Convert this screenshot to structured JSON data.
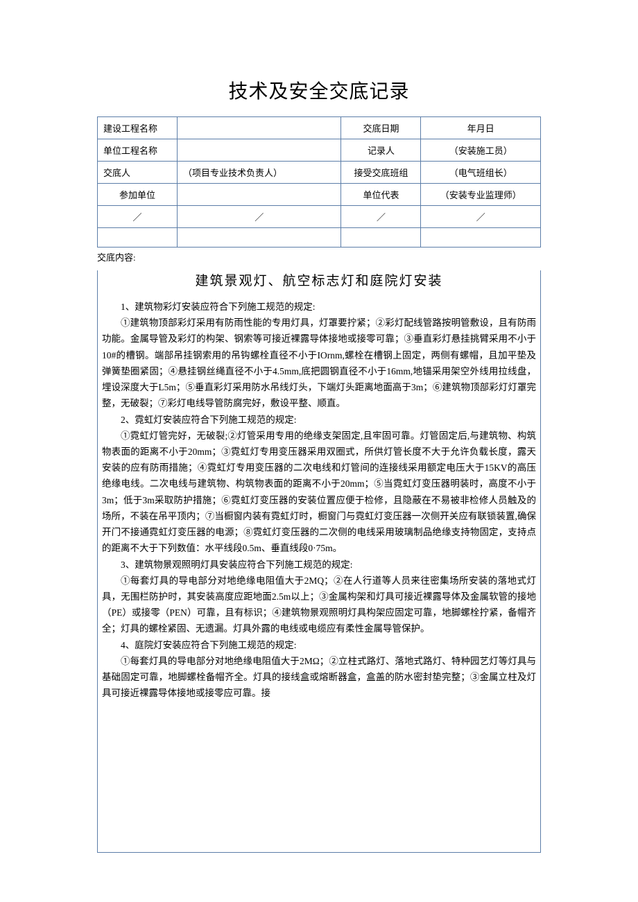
{
  "doc_title": "技术及安全交底记录",
  "table": {
    "rows": [
      {
        "c1": "建设工程名称",
        "c2": "",
        "c3": "交底日期",
        "c4": "年月日"
      },
      {
        "c1": "单位工程名称",
        "c2": "",
        "c3": "记录人",
        "c4": "（安装施工员）"
      },
      {
        "c1": "交底人",
        "c2": "（项目专业技术负责人）",
        "c3": "接受交底班组",
        "c4": "（电气班组长）"
      },
      {
        "c1": "参加单位",
        "c2": "",
        "c3": "单位代表",
        "c4": "（安装专业监理师）"
      },
      {
        "c1": "／",
        "c2": "／",
        "c3": "／",
        "c4": "／"
      },
      {
        "c1": "",
        "c2": "",
        "c3": "",
        "c4": ""
      }
    ]
  },
  "content_label": "交底内容:",
  "content_title": "建筑景观灯、航空标志灯和庭院灯安装",
  "sections": [
    {
      "num": "1、建筑物彩灯安装应符合下列施工规范的规定:",
      "body": "①建筑物顶部彩灯采用有防雨性能的专用灯具，灯罩要拧紧；②彩灯配线管路按明管敷设，且有防雨功能。金属导管及彩灯的构架、钢索等可接近裸露导体接地或接零可靠；③垂直彩灯悬挂挑臂采用不小于10#的槽钢。端部吊挂钢索用的吊钩螺栓直径不小于IOrnm,螺栓在槽钢上固定，两侧有螺帽，且加平垫及弹簧垫圈紧固；④悬挂钢丝绳直径不小于4.5mm,底把圆钢直径不小于16mm,地锚采用架空外线用拉线盘，埋设深度大于L5m；⑤垂直彩灯采用防水吊线灯头，下端灯头距离地面高于3m；⑥建筑物顶部彩灯灯罩完整，无破裂；⑦彩灯电线导管防腐完好，敷设平整、顺直。"
    },
    {
      "num": "2、霓虹灯安装应符合下列施工规范的规定:",
      "body": "①霓虹灯管完好，无破裂;②灯管采用专用的绝缘支架固定,且牢固可靠。灯管固定后,与建筑物、构筑物表面的距离不小于20mm；③霓虹灯专用变压器采用双圈式，所供灯管长度不大于允许负载长度，露天安装的应有防雨措施；④霓虹灯专用变压器的二次电线和灯管间的连接线采用额定电压大于15KV的高压绝缘电线。二次电线与建筑物、构筑物表面的距离不小于20mm；⑤当霓虹灯变压器明装时，高度不小于3m；低于3m采取防护措施；⑥霓虹灯变压器的安装位置应便于检修，且隐蔽在不易被非检修人员触及的场所，不装在吊平顶内；⑦当橱窗内装有霓虹灯时，橱窗门与霓虹灯变压器一次侧开关应有联锁装置,确保开门不接通霓虹灯变压器的电源；⑧霓虹灯变压器的二次侧的电线采用玻璃制品绝缘支持物固定，支持点的距离不大于下列数值：水平线段0.5m、垂直线段0·75m。"
    },
    {
      "num": "3、建筑物景观照明灯具安装应符合下列施工规范的规定:",
      "body": "①每套灯具的导电部分对地绝缘电阻值大于2MQ；②在人行道等人员来往密集场所安装的落地式灯具，无围栏防护时，其安装高度应距地面2.5m以上；③金属构架和灯具可接近裸露导体及金属软管的接地（PE）或接零（PEN）可靠，且有标识；④建筑物景观照明灯具构架应固定可靠，地脚螺栓拧紧，备帽齐全；灯具的螺栓紧固、无遗漏。灯具外露的电线或电缆应有柔性金属导管保护。"
    },
    {
      "num": "4、庭院灯安装应符合下列施工规范的规定:",
      "body": "①每套灯具的导电部分对地绝缘电阻值大于2MΩ；②立柱式路灯、落地式路灯、特种园艺灯等灯具与基础固定可靠，地脚螺栓备帽齐全。灯具的接线盒或熔断器盒，盒盖的防水密封垫完整；③金属立柱及灯具可接近裸露导体接地或接零应可靠。接"
    }
  ],
  "colors": {
    "border": "#5b7da8",
    "text": "#000000",
    "background": "#ffffff"
  }
}
